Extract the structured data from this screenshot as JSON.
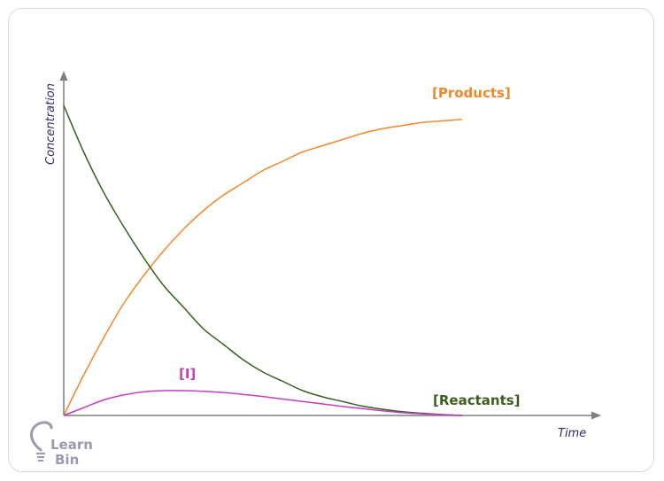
{
  "chart_data": {
    "type": "line",
    "title": "",
    "xlabel": "Time",
    "ylabel": "Concentration",
    "grid": false,
    "legend": "none",
    "xlim": [
      0,
      1
    ],
    "ylim": [
      0,
      1
    ],
    "series": [
      {
        "name": "[Products]",
        "color": "#f0882c",
        "x": [
          0,
          0.05,
          0.1,
          0.15,
          0.2,
          0.25,
          0.3,
          0.35,
          0.4,
          0.45,
          0.5,
          0.55,
          0.6,
          0.65,
          0.7,
          0.75,
          0.8,
          0.85,
          0.9,
          0.95,
          1.0
        ],
        "values": [
          0,
          0.13,
          0.25,
          0.36,
          0.45,
          0.53,
          0.6,
          0.66,
          0.71,
          0.75,
          0.79,
          0.82,
          0.85,
          0.87,
          0.89,
          0.91,
          0.925,
          0.935,
          0.945,
          0.95,
          0.955
        ]
      },
      {
        "name": "[Reactants]",
        "color": "#3a5e1f",
        "x": [
          0,
          0.05,
          0.1,
          0.15,
          0.2,
          0.25,
          0.3,
          0.35,
          0.4,
          0.45,
          0.5,
          0.55,
          0.6,
          0.65,
          0.7,
          0.75,
          0.8,
          0.85,
          0.9,
          0.95,
          1.0
        ],
        "values": [
          1.0,
          0.85,
          0.72,
          0.61,
          0.51,
          0.42,
          0.35,
          0.28,
          0.23,
          0.18,
          0.14,
          0.11,
          0.08,
          0.06,
          0.045,
          0.03,
          0.02,
          0.012,
          0.007,
          0.003,
          0
        ]
      },
      {
        "name": "[I]",
        "color": "#c23fc0",
        "x": [
          0,
          0.05,
          0.1,
          0.15,
          0.2,
          0.25,
          0.3,
          0.35,
          0.4,
          0.45,
          0.5,
          0.55,
          0.6,
          0.65,
          0.7,
          0.75,
          0.8,
          0.85,
          0.9,
          0.95,
          1.0
        ],
        "values": [
          0,
          0.025,
          0.05,
          0.066,
          0.076,
          0.08,
          0.08,
          0.078,
          0.074,
          0.068,
          0.061,
          0.053,
          0.045,
          0.037,
          0.029,
          0.022,
          0.015,
          0.009,
          0.005,
          0.002,
          0
        ]
      }
    ]
  },
  "logo": {
    "line1": "Learn",
    "line2": "Bin"
  },
  "colors": {
    "axis": "#7f7f7f",
    "axis_title": "#2b2b6e",
    "logo": "#9a9ab0"
  }
}
